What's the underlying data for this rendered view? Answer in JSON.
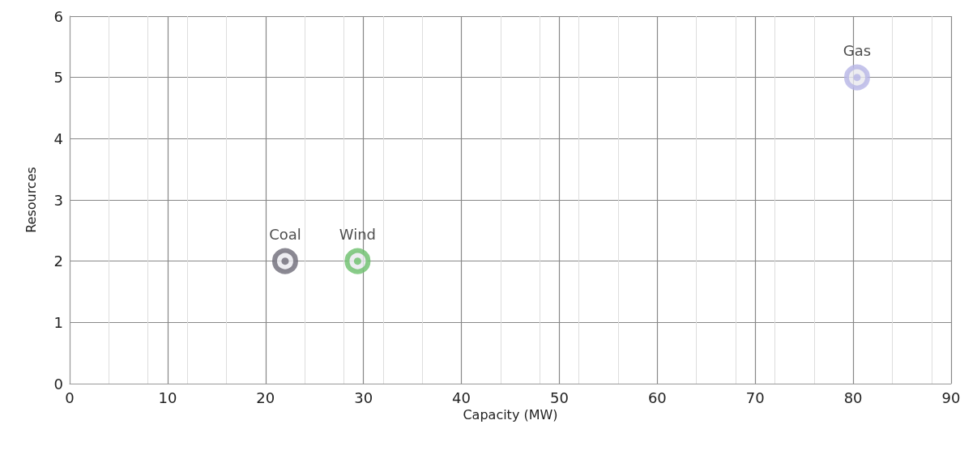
{
  "chart_data": {
    "type": "scatter",
    "xlabel": "Capacity (MW)",
    "ylabel": "Resources",
    "series": [
      {
        "name": "Coal",
        "color": "#6e6b78",
        "x": [
          22
        ],
        "values": [
          2
        ]
      },
      {
        "name": "Wind",
        "color": "#6cbf6c",
        "x": [
          29.4
        ],
        "values": [
          2
        ]
      },
      {
        "name": "Gas",
        "color": "#b7b5e6",
        "x": [
          80.4
        ],
        "values": [
          5
        ]
      }
    ],
    "xlim": [
      0,
      90
    ],
    "xticks": [
      0,
      10,
      20,
      30,
      40,
      50,
      60,
      70,
      80,
      90
    ],
    "ylim": [
      0,
      6
    ],
    "yticks": [
      0,
      1,
      2,
      3,
      4,
      5,
      6
    ],
    "grid": true,
    "marker": "circle"
  }
}
